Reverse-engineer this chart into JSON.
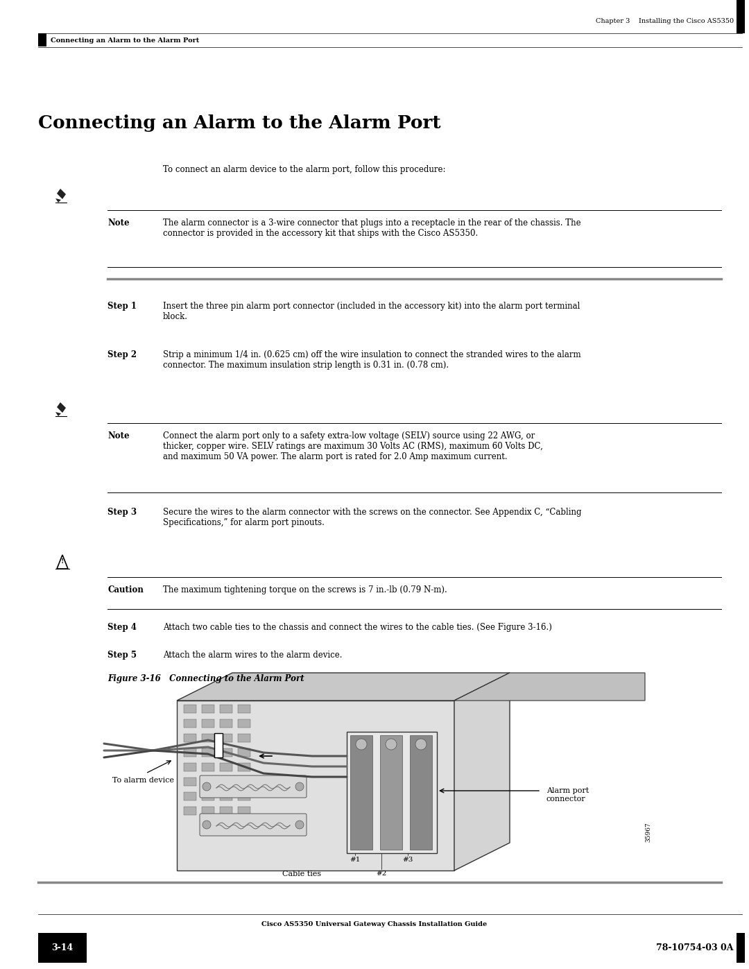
{
  "bg_color": "#ffffff",
  "page_width": 10.8,
  "page_height": 13.97,
  "header_chapter": "Chapter 3    Installing the Cisco AS5350",
  "header_section": "Connecting an Alarm to the Alarm Port",
  "title": "Connecting an Alarm to the Alarm Port",
  "intro_text": "To connect an alarm device to the alarm port, follow this procedure:",
  "note1_label": "Note",
  "note1_text": "The alarm connector is a 3-wire connector that plugs into a receptacle in the rear of the chassis. The\nconnector is provided in the accessory kit that ships with the Cisco AS5350.",
  "step1_label": "Step 1",
  "step1_text": "Insert the three pin alarm port connector (included in the accessory kit) into the alarm port terminal\nblock.",
  "step2_label": "Step 2",
  "step2_text": "Strip a minimum 1/4 in. (0.625 cm) off the wire insulation to connect the stranded wires to the alarm\nconnector. The maximum insulation strip length is 0.31 in. (0.78 cm).",
  "note2_label": "Note",
  "note2_text": "Connect the alarm port only to a safety extra-low voltage (SELV) source using 22 AWG, or\nthicker, copper wire. SELV ratings are maximum 30 Volts AC (RMS), maximum 60 Volts DC,\nand maximum 50 VA power. The alarm port is rated for 2.0 Amp maximum current.",
  "step3_label": "Step 3",
  "step3_text": "Secure the wires to the alarm connector with the screws on the connector. See Appendix C, “Cabling\nSpecifications,” for alarm port pinouts.",
  "caution_label": "Caution",
  "caution_text": "The maximum tightening torque on the screws is 7 in.-lb (0.79 N-m).",
  "step4_label": "Step 4",
  "step4_text": "Attach two cable ties to the chassis and connect the wires to the cable ties. (See Figure 3-16.)",
  "step5_label": "Step 5",
  "step5_text": "Attach the alarm wires to the alarm device.",
  "figure_caption": "Figure 3-16   Connecting to the Alarm Port",
  "figure_label_to_alarm": "To alarm device",
  "figure_label_cable_ties": "Cable ties",
  "figure_label_num1": "#1",
  "figure_label_num2": "#2",
  "figure_label_num3": "#3",
  "figure_label_alarm_port": "Alarm port\nconnector",
  "figure_label_partnum": "35967",
  "footer_left_box": "3-14",
  "footer_center": "Cisco AS5350 Universal Gateway Chassis Installation Guide",
  "footer_right": "78-10754-03 0A"
}
